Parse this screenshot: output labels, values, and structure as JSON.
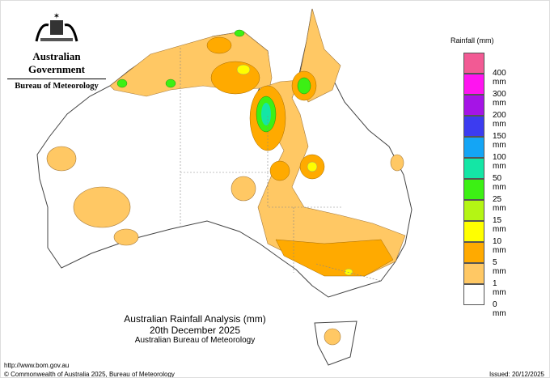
{
  "header": {
    "gov": "Australian Government",
    "bureau": "Bureau of Meteorology",
    "logo": "coat-of-arms"
  },
  "legend": {
    "title": "Rainfall (mm)",
    "items": [
      {
        "color": "#f25a94",
        "label": "400 mm"
      },
      {
        "color": "#ff14f0",
        "label": "300 mm"
      },
      {
        "color": "#a514e6",
        "label": "200 mm"
      },
      {
        "color": "#3c3cf0",
        "label": "150 mm"
      },
      {
        "color": "#14a5f5",
        "label": "100 mm"
      },
      {
        "color": "#14e6a5",
        "label": "50 mm"
      },
      {
        "color": "#3cf014",
        "label": "25 mm"
      },
      {
        "color": "#b4f514",
        "label": "15 mm"
      },
      {
        "color": "#ffff00",
        "label": "10 mm"
      },
      {
        "color": "#ffaa00",
        "label": "5 mm"
      },
      {
        "color": "#ffc864",
        "label": "1 mm"
      },
      {
        "color": "#ffffff",
        "label": "0 mm"
      }
    ]
  },
  "caption": {
    "title": "Australian Rainfall Analysis (mm)",
    "date": "20th December 2025",
    "org": "Australian Bureau of Meteorology"
  },
  "footer": {
    "url": "http://www.bom.gov.au",
    "copyright": "© Commonwealth of Australia 2025, Bureau of Meteorology",
    "issued": "Issued: 20/12/2025"
  }
}
